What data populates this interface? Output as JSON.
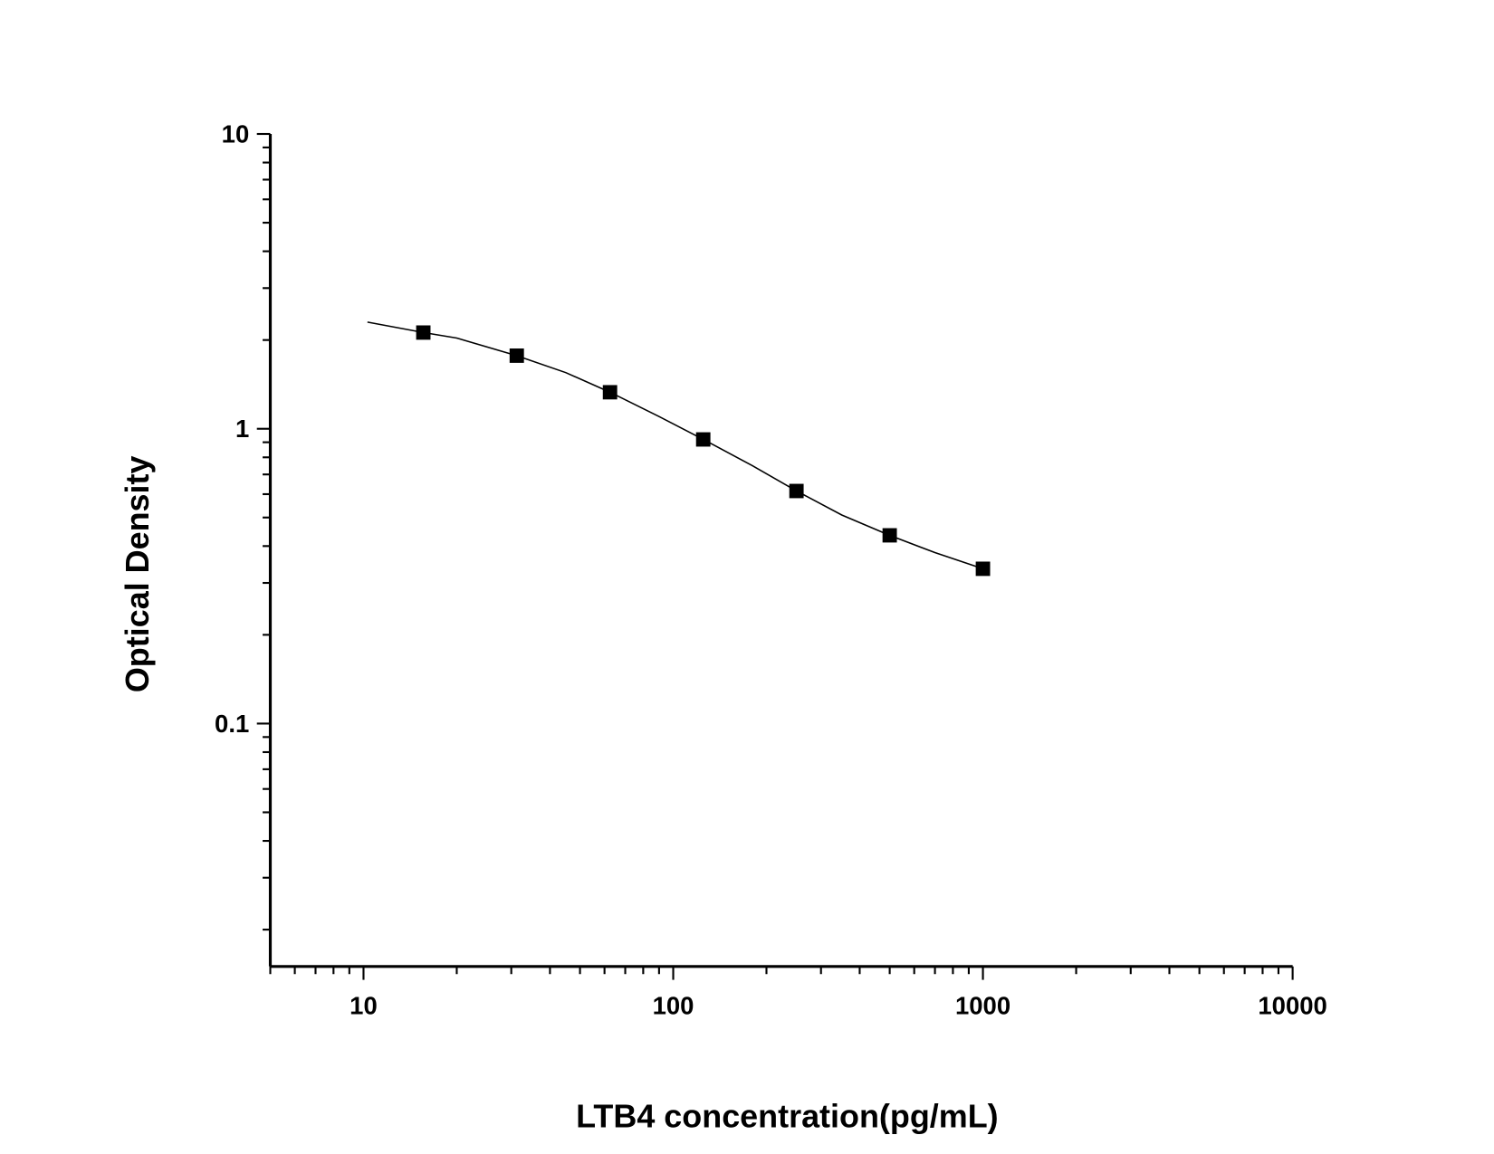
{
  "chart_data": {
    "type": "scatter",
    "x_label": "LTB4 concentration(pg/mL)",
    "y_label": "Optical Density",
    "xlog": true,
    "ylog": true,
    "xlim": [
      5,
      10000
    ],
    "ylim": [
      0.015,
      10
    ],
    "xticks": [
      10,
      100,
      1000,
      10000
    ],
    "yticks": [
      0.1,
      1,
      10
    ],
    "xminorticks": [
      5,
      6,
      7,
      8,
      9,
      20,
      30,
      40,
      50,
      60,
      70,
      80,
      90,
      200,
      300,
      400,
      500,
      600,
      700,
      800,
      900,
      2000,
      3000,
      4000,
      5000,
      6000,
      7000,
      8000,
      9000
    ],
    "yminorticks": [
      0.02,
      0.03,
      0.04,
      0.05,
      0.06,
      0.07,
      0.08,
      0.09,
      0.2,
      0.3,
      0.4,
      0.5,
      0.6,
      0.7,
      0.8,
      0.9,
      2,
      3,
      4,
      5,
      6,
      7,
      8,
      9
    ],
    "color": "#000000",
    "x": [
      15.6,
      31.25,
      62.5,
      125,
      250,
      500,
      1000
    ],
    "values": [
      2.12,
      1.77,
      1.33,
      0.92,
      0.615,
      0.435,
      0.335
    ],
    "curve": {
      "x": [
        10.3,
        15.6,
        20,
        31.25,
        45,
        62.5,
        90,
        125,
        180,
        250,
        350,
        500,
        700,
        1000
      ],
      "values": [
        2.3,
        2.12,
        2.03,
        1.77,
        1.55,
        1.33,
        1.1,
        0.92,
        0.75,
        0.615,
        0.51,
        0.435,
        0.38,
        0.335
      ]
    }
  }
}
